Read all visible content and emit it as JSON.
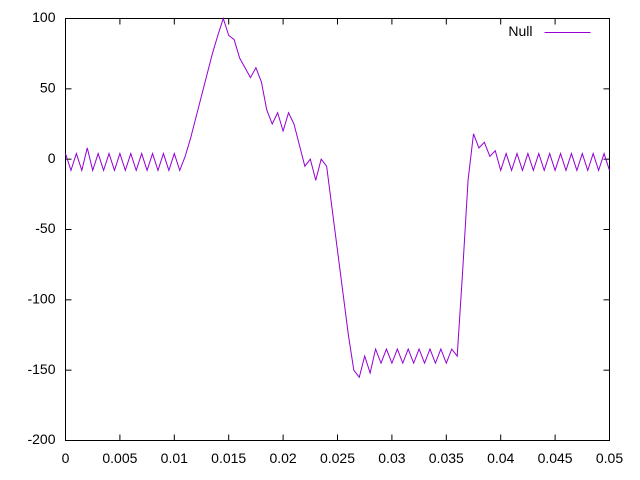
{
  "chart_data": {
    "type": "line",
    "x": [
      0,
      0.0005,
      0.001,
      0.0015,
      0.002,
      0.0025,
      0.003,
      0.0035,
      0.004,
      0.0045,
      0.005,
      0.0055,
      0.006,
      0.0065,
      0.007,
      0.0075,
      0.008,
      0.0085,
      0.009,
      0.0095,
      0.01,
      0.0105,
      0.011,
      0.0115,
      0.012,
      0.0125,
      0.013,
      0.0135,
      0.014,
      0.0145,
      0.015,
      0.0155,
      0.016,
      0.0165,
      0.017,
      0.0175,
      0.018,
      0.0185,
      0.019,
      0.0195,
      0.02,
      0.0205,
      0.021,
      0.0215,
      0.022,
      0.0225,
      0.023,
      0.0235,
      0.024,
      0.0245,
      0.025,
      0.0255,
      0.026,
      0.0265,
      0.027,
      0.0275,
      0.028,
      0.0285,
      0.029,
      0.0295,
      0.03,
      0.0305,
      0.031,
      0.0315,
      0.032,
      0.0325,
      0.033,
      0.0335,
      0.034,
      0.0345,
      0.035,
      0.0355,
      0.036,
      0.0365,
      0.037,
      0.0375,
      0.038,
      0.0385,
      0.039,
      0.0395,
      0.04,
      0.0405,
      0.041,
      0.0415,
      0.042,
      0.0425,
      0.043,
      0.0435,
      0.044,
      0.0445,
      0.045,
      0.0455,
      0.046,
      0.0465,
      0.047,
      0.0475,
      0.048,
      0.0485,
      0.049,
      0.0495,
      0.05
    ],
    "series": [
      {
        "name": "Null",
        "color": "#9400d3",
        "values": [
          4,
          -8,
          4,
          -8,
          8,
          -8,
          4,
          -8,
          4,
          -8,
          4,
          -8,
          4,
          -8,
          4,
          -8,
          4,
          -8,
          4,
          -8,
          4,
          -8,
          2,
          15,
          30,
          45,
          60,
          75,
          88,
          100,
          88,
          85,
          72,
          65,
          58,
          65,
          55,
          35,
          25,
          33,
          20,
          33,
          25,
          10,
          -5,
          0,
          -15,
          0,
          -5,
          -35,
          -65,
          -95,
          -125,
          -150,
          -155,
          -140,
          -152,
          -135,
          -145,
          -135,
          -145,
          -135,
          -145,
          -135,
          -145,
          -135,
          -145,
          -135,
          -145,
          -135,
          -145,
          -135,
          -140,
          -80,
          -15,
          18,
          8,
          12,
          2,
          6,
          -8,
          4,
          -8,
          4,
          -8,
          4,
          -8,
          4,
          -8,
          4,
          -8,
          4,
          -8,
          4,
          -8,
          4,
          -8,
          4,
          -8,
          4,
          -8
        ]
      }
    ],
    "xlim": [
      0,
      0.05
    ],
    "xticks": [
      0,
      0.005,
      0.01,
      0.015,
      0.02,
      0.025,
      0.03,
      0.035,
      0.04,
      0.045,
      0.05
    ],
    "ylim": [
      -200,
      100
    ],
    "yticks": [
      -200,
      -150,
      -100,
      -50,
      0,
      50,
      100
    ],
    "legend": "top-right"
  }
}
